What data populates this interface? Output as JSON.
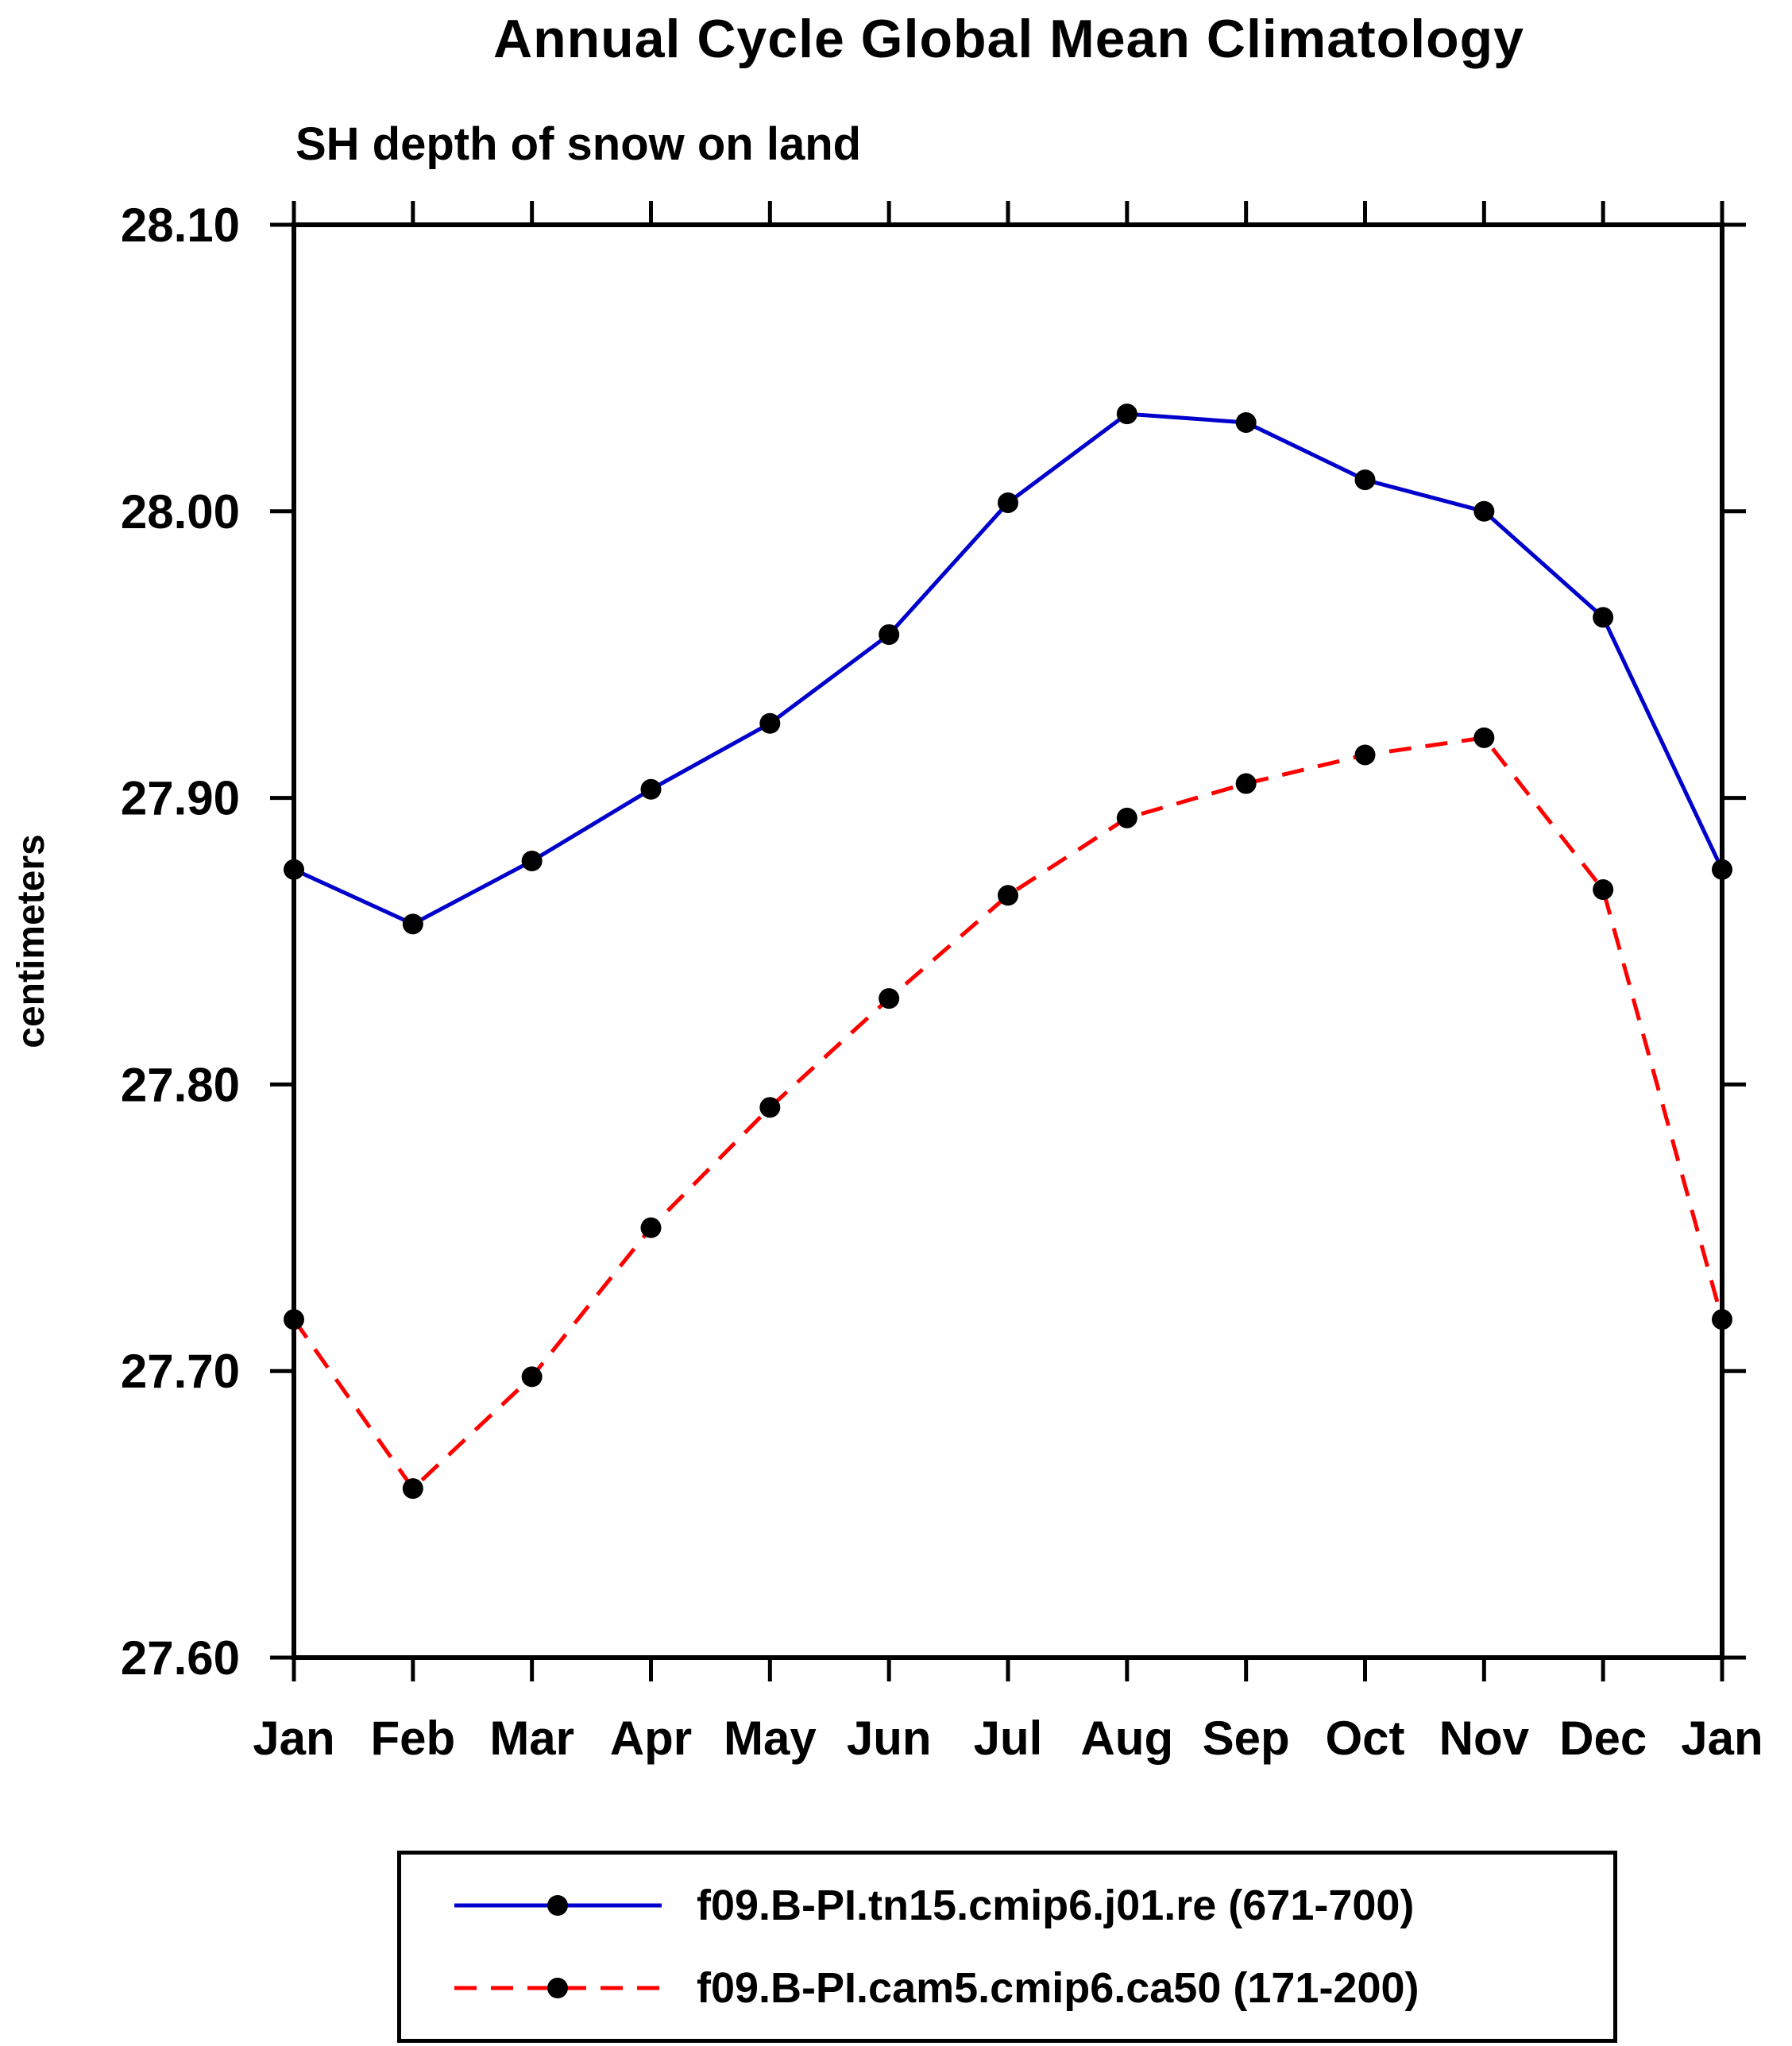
{
  "title": "Annual Cycle Global Mean Climatology",
  "subtitle": "SH depth of snow on land",
  "ylabel": "centimeters",
  "colors": {
    "axis": "#000000",
    "marker": "#000000",
    "series1": "#0000cc",
    "series2": "#ff0000"
  },
  "chart_data": {
    "type": "line",
    "title": "Annual Cycle Global Mean Climatology",
    "subtitle": "SH depth of snow on land",
    "xlabel": "",
    "ylabel": "centimeters",
    "categories": [
      "Jan",
      "Feb",
      "Mar",
      "Apr",
      "May",
      "Jun",
      "Jul",
      "Aug",
      "Sep",
      "Oct",
      "Nov",
      "Dec",
      "Jan"
    ],
    "ylim": [
      27.6,
      28.1
    ],
    "yticks": [
      27.6,
      27.7,
      27.8,
      27.9,
      28.0,
      28.1
    ],
    "grid": false,
    "legend_position": "bottom",
    "marker": "filled-circle",
    "marker_color": "#000000",
    "series": [
      {
        "name": "f09.B-PI.tn15.cmip6.j01.re (671-700)",
        "color": "#0000cc",
        "style": "solid",
        "values": [
          27.875,
          27.856,
          27.878,
          27.903,
          27.926,
          27.957,
          28.003,
          28.034,
          28.031,
          28.011,
          28.0,
          27.963,
          27.875
        ]
      },
      {
        "name": "f09.B-PI.cam5.cmip6.ca50 (171-200)",
        "color": "#ff0000",
        "style": "dashed",
        "values": [
          27.718,
          27.659,
          27.698,
          27.75,
          27.792,
          27.83,
          27.866,
          27.893,
          27.905,
          27.915,
          27.921,
          27.868,
          27.718
        ]
      }
    ]
  }
}
